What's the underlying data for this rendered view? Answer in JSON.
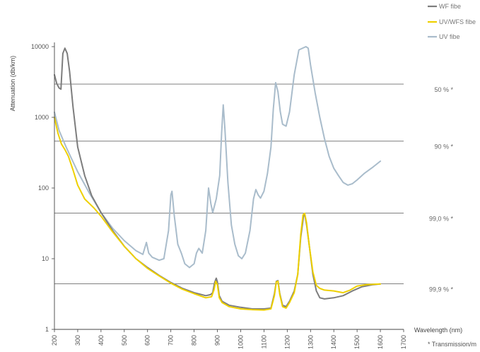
{
  "chart_data": {
    "type": "line",
    "ylabel": "Attenuation (db/km)",
    "xlabel": "Wavelength (nm)",
    "footnote": "* Transmission/m",
    "xlim": [
      200,
      1700
    ],
    "ylim": [
      1,
      10000
    ],
    "yscale": "log",
    "x_ticks": [
      200,
      300,
      400,
      500,
      600,
      700,
      800,
      900,
      1000,
      1100,
      1200,
      1300,
      1400,
      1500,
      1600,
      1700
    ],
    "y_ticks": [
      {
        "value": 1,
        "label": "1"
      },
      {
        "value": 10,
        "label": "10"
      },
      {
        "value": 100,
        "label": "100"
      },
      {
        "value": 1000,
        "label": "1000"
      },
      {
        "value": 10000,
        "label": "10000"
      }
    ],
    "reference_lines": [
      {
        "value": 2950,
        "label": "50 % *"
      },
      {
        "value": 460,
        "label": "90 % *"
      },
      {
        "value": 44,
        "label": "99,0 % *"
      },
      {
        "value": 4.4,
        "label": "99,9 % *"
      }
    ],
    "legend": {
      "position": "top-right"
    },
    "series": [
      {
        "name": "UV fibe",
        "color": "#a9bccb",
        "points": [
          [
            200,
            1180
          ],
          [
            220,
            650
          ],
          [
            250,
            380
          ],
          [
            300,
            170
          ],
          [
            350,
            85
          ],
          [
            400,
            45
          ],
          [
            450,
            27
          ],
          [
            500,
            18
          ],
          [
            550,
            13
          ],
          [
            580,
            11.5
          ],
          [
            595,
            17
          ],
          [
            605,
            12
          ],
          [
            620,
            10.5
          ],
          [
            650,
            9.5
          ],
          [
            670,
            10
          ],
          [
            690,
            25
          ],
          [
            700,
            80
          ],
          [
            705,
            90
          ],
          [
            715,
            40
          ],
          [
            730,
            16
          ],
          [
            745,
            12
          ],
          [
            760,
            8.5
          ],
          [
            780,
            7.5
          ],
          [
            800,
            8.5
          ],
          [
            810,
            12
          ],
          [
            820,
            14
          ],
          [
            835,
            12
          ],
          [
            850,
            25
          ],
          [
            862,
            100
          ],
          [
            872,
            60
          ],
          [
            880,
            45
          ],
          [
            895,
            70
          ],
          [
            910,
            150
          ],
          [
            918,
            600
          ],
          [
            925,
            1500
          ],
          [
            932,
            700
          ],
          [
            945,
            120
          ],
          [
            960,
            30
          ],
          [
            975,
            16
          ],
          [
            990,
            11
          ],
          [
            1005,
            10
          ],
          [
            1020,
            12
          ],
          [
            1040,
            25
          ],
          [
            1055,
            70
          ],
          [
            1065,
            95
          ],
          [
            1075,
            80
          ],
          [
            1085,
            72
          ],
          [
            1100,
            90
          ],
          [
            1115,
            160
          ],
          [
            1130,
            380
          ],
          [
            1140,
            1300
          ],
          [
            1150,
            3100
          ],
          [
            1160,
            2300
          ],
          [
            1170,
            1200
          ],
          [
            1180,
            800
          ],
          [
            1195,
            750
          ],
          [
            1210,
            1200
          ],
          [
            1230,
            4000
          ],
          [
            1250,
            9000
          ],
          [
            1280,
            10000
          ],
          [
            1290,
            9500
          ],
          [
            1300,
            5500
          ],
          [
            1320,
            2200
          ],
          [
            1340,
            1000
          ],
          [
            1360,
            500
          ],
          [
            1380,
            280
          ],
          [
            1400,
            190
          ],
          [
            1420,
            150
          ],
          [
            1440,
            120
          ],
          [
            1460,
            110
          ],
          [
            1480,
            115
          ],
          [
            1500,
            130
          ],
          [
            1530,
            160
          ],
          [
            1570,
            200
          ],
          [
            1600,
            240
          ]
        ]
      },
      {
        "name": "WF fibe",
        "color": "#7d7d7d",
        "points": [
          [
            200,
            4000
          ],
          [
            210,
            3000
          ],
          [
            220,
            2600
          ],
          [
            228,
            2500
          ],
          [
            236,
            8000
          ],
          [
            245,
            9500
          ],
          [
            255,
            8000
          ],
          [
            265,
            4500
          ],
          [
            280,
            1400
          ],
          [
            300,
            380
          ],
          [
            330,
            150
          ],
          [
            360,
            78
          ],
          [
            400,
            45
          ],
          [
            450,
            25
          ],
          [
            500,
            15
          ],
          [
            550,
            10
          ],
          [
            600,
            7.5
          ],
          [
            650,
            5.8
          ],
          [
            700,
            4.6
          ],
          [
            750,
            3.8
          ],
          [
            800,
            3.3
          ],
          [
            850,
            3
          ],
          [
            870,
            3.1
          ],
          [
            880,
            3.3
          ],
          [
            888,
            4.6
          ],
          [
            895,
            5.3
          ],
          [
            900,
            4.7
          ],
          [
            908,
            3
          ],
          [
            920,
            2.5
          ],
          [
            950,
            2.2
          ],
          [
            1000,
            2.05
          ],
          [
            1050,
            1.95
          ],
          [
            1100,
            1.95
          ],
          [
            1130,
            2
          ],
          [
            1145,
            3.2
          ],
          [
            1153,
            4.8
          ],
          [
            1160,
            4.9
          ],
          [
            1168,
            3.2
          ],
          [
            1180,
            2.2
          ],
          [
            1195,
            2.1
          ],
          [
            1210,
            2.5
          ],
          [
            1230,
            3.5
          ],
          [
            1245,
            6
          ],
          [
            1258,
            20
          ],
          [
            1270,
            40
          ],
          [
            1275,
            43
          ],
          [
            1283,
            30
          ],
          [
            1295,
            15
          ],
          [
            1310,
            6
          ],
          [
            1325,
            3.5
          ],
          [
            1340,
            2.8
          ],
          [
            1360,
            2.7
          ],
          [
            1400,
            2.8
          ],
          [
            1440,
            3
          ],
          [
            1480,
            3.5
          ],
          [
            1520,
            4
          ],
          [
            1570,
            4.3
          ],
          [
            1600,
            4.4
          ]
        ]
      },
      {
        "name": "UV/WFS fibe",
        "color": "#eed000",
        "points": [
          [
            200,
            1000
          ],
          [
            215,
            600
          ],
          [
            230,
            420
          ],
          [
            245,
            350
          ],
          [
            260,
            280
          ],
          [
            280,
            180
          ],
          [
            300,
            110
          ],
          [
            330,
            70
          ],
          [
            370,
            52
          ],
          [
            400,
            40
          ],
          [
            450,
            24
          ],
          [
            500,
            15
          ],
          [
            550,
            10
          ],
          [
            600,
            7.3
          ],
          [
            650,
            5.7
          ],
          [
            700,
            4.5
          ],
          [
            750,
            3.7
          ],
          [
            800,
            3.2
          ],
          [
            850,
            2.8
          ],
          [
            875,
            2.9
          ],
          [
            885,
            3.6
          ],
          [
            893,
            4.8
          ],
          [
            900,
            4.3
          ],
          [
            908,
            2.8
          ],
          [
            920,
            2.4
          ],
          [
            950,
            2.1
          ],
          [
            1000,
            1.95
          ],
          [
            1050,
            1.9
          ],
          [
            1100,
            1.88
          ],
          [
            1130,
            1.95
          ],
          [
            1145,
            3
          ],
          [
            1153,
            4.7
          ],
          [
            1160,
            4.8
          ],
          [
            1168,
            3.1
          ],
          [
            1180,
            2.1
          ],
          [
            1195,
            2
          ],
          [
            1210,
            2.4
          ],
          [
            1230,
            3.3
          ],
          [
            1245,
            6
          ],
          [
            1258,
            22
          ],
          [
            1268,
            42
          ],
          [
            1275,
            44
          ],
          [
            1283,
            32
          ],
          [
            1295,
            15
          ],
          [
            1310,
            6.5
          ],
          [
            1325,
            4.2
          ],
          [
            1340,
            3.8
          ],
          [
            1360,
            3.6
          ],
          [
            1400,
            3.5
          ],
          [
            1440,
            3.3
          ],
          [
            1470,
            3.6
          ],
          [
            1500,
            4.1
          ],
          [
            1540,
            4.3
          ],
          [
            1600,
            4.4
          ]
        ]
      }
    ]
  }
}
